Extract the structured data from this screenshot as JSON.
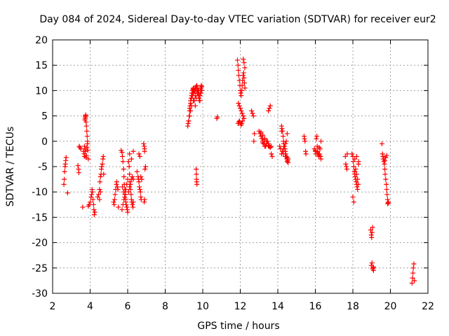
{
  "chart_data": {
    "type": "scatter",
    "title": "Day 084 of 2024, Sidereal Day-to-day VTEC variation (SDTVAR) for receiver eur2",
    "xlabel": "GPS time / hours",
    "ylabel": "SDTVAR / TECUs",
    "xlim": [
      2,
      22
    ],
    "ylim": [
      -30,
      20
    ],
    "xticks": [
      2,
      4,
      6,
      8,
      10,
      12,
      14,
      16,
      18,
      20,
      22
    ],
    "yticks": [
      -30,
      -25,
      -20,
      -15,
      -10,
      -5,
      0,
      5,
      10,
      15,
      20
    ],
    "grid": true,
    "marker": "plus",
    "color": "#ff0000",
    "series": [
      {
        "name": "SDTVAR",
        "x": [
          2.6,
          2.62,
          2.64,
          2.66,
          2.68,
          2.7,
          2.72,
          2.8,
          3.35,
          3.38,
          3.4,
          3.42,
          3.45,
          3.5,
          3.6,
          3.65,
          3.68,
          3.7,
          3.72,
          3.74,
          3.76,
          3.78,
          3.8,
          3.82,
          3.84,
          3.86,
          3.7,
          3.72,
          3.75,
          3.78,
          3.8,
          3.83,
          3.86,
          3.88,
          3.9,
          3.74,
          3.76,
          3.9,
          3.95,
          4.0,
          4.05,
          4.08,
          4.1,
          4.12,
          4.15,
          4.18,
          4.2,
          4.22,
          4.25,
          4.4,
          4.45,
          4.5,
          4.52,
          4.55,
          4.58,
          4.6,
          4.62,
          4.65,
          4.68,
          4.7,
          4.72,
          4.5,
          4.55,
          5.25,
          5.28,
          5.3,
          5.33,
          5.36,
          5.4,
          5.42,
          5.45,
          5.48,
          5.5,
          5.65,
          5.7,
          5.72,
          5.75,
          5.78,
          5.8,
          5.82,
          5.85,
          5.88,
          5.9,
          5.92,
          5.95,
          5.98,
          6.0,
          5.7,
          5.75,
          5.8,
          5.85,
          5.9,
          5.95,
          6.0,
          5.72,
          5.78,
          5.84,
          5.9,
          5.96,
          6.05,
          6.08,
          6.1,
          6.12,
          6.15,
          6.18,
          6.2,
          6.22,
          6.25,
          6.28,
          6.3,
          6.05,
          6.1,
          6.15,
          6.2,
          6.25,
          6.3,
          6.1,
          6.2,
          6.3,
          6.5,
          6.55,
          6.58,
          6.6,
          6.62,
          6.65,
          6.68,
          6.7,
          6.72,
          6.75,
          6.6,
          6.65,
          6.7,
          6.85,
          6.88,
          6.9,
          6.9,
          6.92,
          6.95,
          6.88,
          6.9,
          9.2,
          9.22,
          9.25,
          9.28,
          9.3,
          9.32,
          9.35,
          9.38,
          9.4,
          9.42,
          9.45,
          9.48,
          9.5,
          9.52,
          9.55,
          9.58,
          9.6,
          9.62,
          9.65,
          9.68,
          9.7,
          9.72,
          9.75,
          9.78,
          9.8,
          9.82,
          9.85,
          9.88,
          9.9,
          9.92,
          9.95,
          9.3,
          9.35,
          9.4,
          9.45,
          9.5,
          9.55,
          9.6,
          9.65,
          9.7,
          9.75,
          9.8,
          9.85,
          9.9,
          9.25,
          9.3,
          9.35,
          9.4,
          9.5,
          9.6,
          9.7,
          9.8,
          9.9,
          9.95,
          9.65,
          9.66,
          9.67,
          9.68,
          9.69,
          10.75,
          10.78,
          11.85,
          11.88,
          11.9,
          11.92,
          11.95,
          11.98,
          12.0,
          12.02,
          12.05,
          12.08,
          12.1,
          12.12,
          12.15,
          12.18,
          12.2,
          12.22,
          12.25,
          11.9,
          11.95,
          12.0,
          12.05,
          12.1,
          12.15,
          12.2,
          11.88,
          11.92,
          11.96,
          12.0,
          12.04,
          12.08,
          12.12,
          12.16,
          12.2,
          12.24,
          12.6,
          12.65,
          12.7,
          12.72,
          12.75,
          13.0,
          13.05,
          13.1,
          13.15,
          13.2,
          13.25,
          13.3,
          13.35,
          13.4,
          13.45,
          13.5,
          13.55,
          13.6,
          13.65,
          13.1,
          13.2,
          13.3,
          13.4,
          13.5,
          13.6,
          13.2,
          13.3,
          13.4,
          13.5,
          13.5,
          13.55,
          13.6,
          13.65,
          13.7,
          14.1,
          14.15,
          14.2,
          14.22,
          14.25,
          14.28,
          14.3,
          14.32,
          14.35,
          14.38,
          14.4,
          14.42,
          14.45,
          14.48,
          14.5,
          14.52,
          14.55,
          14.2,
          14.25,
          14.3,
          14.35,
          14.4,
          14.45,
          14.5,
          14.2,
          14.3,
          14.4,
          14.5,
          14.55,
          15.4,
          15.42,
          15.45,
          15.48,
          15.5,
          15.95,
          16.0,
          16.02,
          16.05,
          16.08,
          16.1,
          16.12,
          16.15,
          16.18,
          16.2,
          16.22,
          16.25,
          16.28,
          16.3,
          16.0,
          16.1,
          16.2,
          16.3,
          17.6,
          17.62,
          17.65,
          17.68,
          17.7,
          17.95,
          18.0,
          18.02,
          18.05,
          18.08,
          18.1,
          18.12,
          18.15,
          18.18,
          18.2,
          18.22,
          18.25,
          18.28,
          18.3,
          18.0,
          18.05,
          18.1,
          18.15,
          18.2,
          18.25,
          18.3,
          18.1,
          18.2,
          18.95,
          18.98,
          19.0,
          19.02,
          19.05,
          19.08,
          19.1,
          18.98,
          19.02,
          19.06,
          19.1,
          19.55,
          19.58,
          19.6,
          19.62,
          19.65,
          19.68,
          19.7,
          19.72,
          19.75,
          19.78,
          19.8,
          19.82,
          19.85,
          19.88,
          19.9,
          19.7,
          19.75,
          19.8,
          19.85,
          21.15,
          21.18,
          21.2,
          21.22,
          21.25,
          21.28
        ],
        "y": [
          -8.5,
          -7.5,
          -6.0,
          -5.0,
          -4.5,
          -3.8,
          -3.2,
          -10.2,
          -4.8,
          -5.5,
          -6.2,
          -1.0,
          -1.2,
          -1.5,
          -13.0,
          -2.0,
          -2.5,
          -3.0,
          4.2,
          4.8,
          5.0,
          3.8,
          3.0,
          2.0,
          1.0,
          0.0,
          -1.0,
          -1.5,
          -2.0,
          -3.2,
          -2.8,
          -1.2,
          -0.5,
          -1.8,
          -3.5,
          4.5,
          5.2,
          -12.8,
          -12.5,
          -12.0,
          -11.0,
          -10.5,
          -9.5,
          -10.0,
          -11.5,
          -12.5,
          -13.5,
          -14.5,
          -14.0,
          -11.0,
          -10.5,
          -9.5,
          -8.0,
          -7.0,
          -6.5,
          -5.5,
          -5.0,
          -4.5,
          -3.5,
          -3.0,
          -6.5,
          -11.5,
          -10.0,
          -12.0,
          -12.5,
          -11.5,
          -10.5,
          -9.5,
          -8.5,
          -8.0,
          -9.0,
          -9.5,
          -13.0,
          -1.8,
          -2.2,
          -3.0,
          -4.0,
          -5.5,
          -7.0,
          -8.5,
          -9.5,
          -10.5,
          -11.5,
          -12.5,
          -13.0,
          -13.5,
          -14.0,
          -13.5,
          -12.5,
          -11.5,
          -10.5,
          -9.5,
          -8.5,
          -7.5,
          -9.0,
          -10.0,
          -11.0,
          -12.0,
          -13.0,
          -4.0,
          -5.0,
          -6.5,
          -8.0,
          -9.5,
          -10.5,
          -11.5,
          -12.0,
          -12.5,
          -13.0,
          -12.0,
          -10.0,
          -9.0,
          -8.5,
          -7.5,
          -7.0,
          -7.5,
          -2.5,
          -3.5,
          -2.0,
          -6.0,
          -7.0,
          -7.5,
          -8.0,
          -9.0,
          -9.5,
          -10.0,
          -11.0,
          -11.5,
          -7.5,
          -2.5,
          -3.0,
          -7.0,
          -0.5,
          -1.0,
          -1.5,
          -2.0,
          -5.5,
          -5.0,
          -12.0,
          -11.5,
          3.0,
          3.5,
          4.0,
          5.0,
          6.0,
          7.0,
          8.0,
          8.5,
          9.0,
          9.5,
          10.0,
          10.3,
          10.5,
          10.2,
          9.8,
          10.0,
          10.2,
          10.5,
          10.8,
          11.0,
          10.5,
          10.0,
          9.5,
          9.0,
          8.5,
          8.0,
          9.0,
          10.0,
          10.5,
          11.0,
          10.8,
          6.5,
          7.5,
          8.5,
          9.0,
          9.5,
          8.0,
          7.0,
          8.5,
          9.5,
          10.0,
          9.0,
          8.0,
          9.5,
          4.0,
          5.0,
          6.0,
          7.0,
          8.0,
          9.0,
          9.5,
          10.0,
          10.5,
          10.0,
          -5.5,
          -6.5,
          -7.5,
          -8.0,
          -8.5,
          4.5,
          4.8,
          16.0,
          15.0,
          14.0,
          13.0,
          12.0,
          11.0,
          10.0,
          9.5,
          9.0,
          10.0,
          11.0,
          12.0,
          13.0,
          13.5,
          12.5,
          11.5,
          10.5,
          7.5,
          7.0,
          6.5,
          6.0,
          5.5,
          5.0,
          4.5,
          3.5,
          3.8,
          4.0,
          3.6,
          3.2,
          3.5,
          4.0,
          16.2,
          15.5,
          14.5,
          6.0,
          5.5,
          5.0,
          0.0,
          1.5,
          2.0,
          1.5,
          1.0,
          0.5,
          0.0,
          -0.5,
          -1.0,
          -1.0,
          -0.5,
          0.0,
          -0.5,
          -1.0,
          -1.2,
          -1.0,
          1.8,
          1.2,
          0.6,
          0.0,
          -0.8,
          -1.2,
          -0.3,
          0.3,
          -0.5,
          -1.0,
          6.0,
          6.5,
          7.0,
          -2.5,
          -3.0,
          -1.0,
          -1.5,
          3.0,
          2.5,
          2.0,
          1.0,
          0.0,
          -0.5,
          -1.0,
          -1.5,
          -2.0,
          -2.5,
          -3.0,
          -3.5,
          -4.0,
          -3.8,
          -3.5,
          -2.5,
          -2.0,
          -1.5,
          -1.0,
          -0.5,
          0.0,
          1.5,
          2.0,
          -2.5,
          -3.0,
          -3.2,
          -4.2,
          1.0,
          0.5,
          0.0,
          -2.0,
          -2.5,
          -1.5,
          -2.0,
          -2.5,
          0.5,
          1.0,
          -1.0,
          -2.0,
          -2.5,
          -3.0,
          -2.8,
          -2.5,
          -1.5,
          -3.0,
          -3.5,
          -1.8,
          -2.2,
          -1.2,
          0.0,
          -3.0,
          -4.5,
          -5.0,
          -5.5,
          -2.5,
          -2.5,
          -3.0,
          -4.0,
          -5.0,
          -6.0,
          -6.5,
          -7.0,
          -7.5,
          -8.0,
          -8.5,
          -9.0,
          -9.5,
          -8.5,
          -4.0,
          -11.0,
          -12.0,
          -6.0,
          -5.5,
          -6.5,
          -7.5,
          -4.5,
          -3.5,
          -3.0,
          -17.5,
          -18.5,
          -19.0,
          -18.0,
          -17.0,
          -25.0,
          -25.5,
          -24.5,
          -24.0,
          -25.2,
          -24.8,
          -0.5,
          -2.5,
          -3.0,
          -3.5,
          -4.0,
          -4.5,
          -5.5,
          -6.5,
          -7.5,
          -8.5,
          -9.5,
          -10.5,
          -11.5,
          -12.0,
          -12.2,
          -3.8,
          -3.2,
          -2.8,
          -12.3,
          -28.0,
          -27.0,
          -26.0,
          -25.0,
          -24.2,
          -27.5
        ]
      }
    ]
  }
}
